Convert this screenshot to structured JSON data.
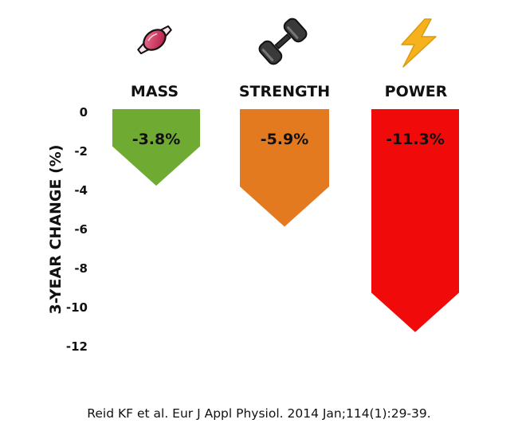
{
  "chart_data": {
    "type": "bar",
    "categories": [
      "MASS",
      "STRENGTH",
      "POWER"
    ],
    "values": [
      -3.8,
      -5.9,
      -11.3
    ],
    "value_labels": [
      "-3.8%",
      "-5.9%",
      "-11.3%"
    ],
    "colors": [
      "#6fab33",
      "#e47a1f",
      "#f00a0a"
    ],
    "icons": [
      "muscle-icon",
      "dumbbell-icon",
      "lightning-bolt-icon"
    ],
    "ylabel": "3-YEAR CHANGE (%)",
    "ylim": [
      -12,
      0
    ],
    "yticks": [
      "0",
      "-2",
      "-4",
      "-6",
      "-8",
      "-10",
      "-12"
    ],
    "grid": false,
    "legend": "none"
  },
  "citation": "Reid KF et al. Eur J Appl Physiol. 2014 Jan;114(1):29-39."
}
